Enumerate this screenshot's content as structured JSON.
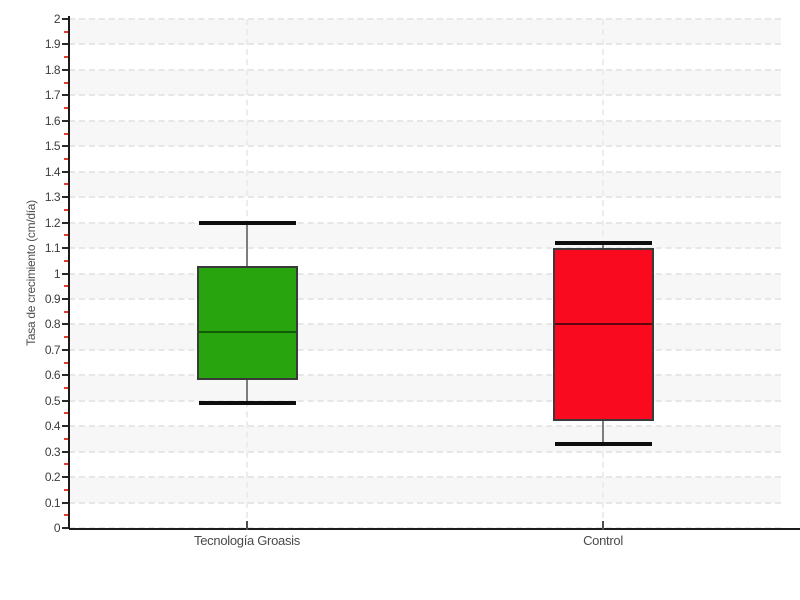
{
  "chart_data": {
    "type": "boxplot",
    "title": "",
    "xlabel": "",
    "ylabel": "Tasa de crecimiento (cm/día)",
    "ylim": [
      0,
      2
    ],
    "y_major_step": 0.1,
    "y_minor_step": 0.05,
    "y_tick_labels": [
      "2",
      "1.9",
      "1.8",
      "1.7",
      "1.6",
      "1.5",
      "1.4",
      "1.3",
      "1.2",
      "1.1",
      "1",
      "0.9",
      "0.8",
      "0.7",
      "0.6",
      "0.5",
      "0.4",
      "0.3",
      "0.2",
      "0.1",
      "0"
    ],
    "grid": "horizontal dashed gridlines each 0.1, alternating gray/white bands, vertical dashed line at each category",
    "legend": "none",
    "categories": [
      "Tecnología Groasis",
      "Control"
    ],
    "series": [
      {
        "name": "Tecnología Groasis",
        "whisker_low": 0.49,
        "q1": 0.58,
        "median": 0.77,
        "q3": 1.03,
        "whisker_high": 1.2,
        "fill": "#28a40e",
        "median_color": "#135c07"
      },
      {
        "name": "Control",
        "whisker_low": 0.33,
        "q1": 0.42,
        "median": 0.8,
        "q3": 1.1,
        "whisker_high": 1.12,
        "fill": "#fa0a1e",
        "median_color": "#5e0410"
      }
    ],
    "style": {
      "band_gray": "#f7f7f7",
      "band_white": "#ffffff",
      "axis_color": "#1c1c1c",
      "major_tick_color": "#2a2a2a",
      "minor_tick_color": "#e8392a",
      "whisker_stem_color": "#7d7d7d",
      "whisker_cap_color": "#0e0e0e",
      "box_border_color": "#3a3a3a",
      "tick_label_color": "#3d3d3d",
      "category_label_color": "#4a4a4a"
    }
  }
}
